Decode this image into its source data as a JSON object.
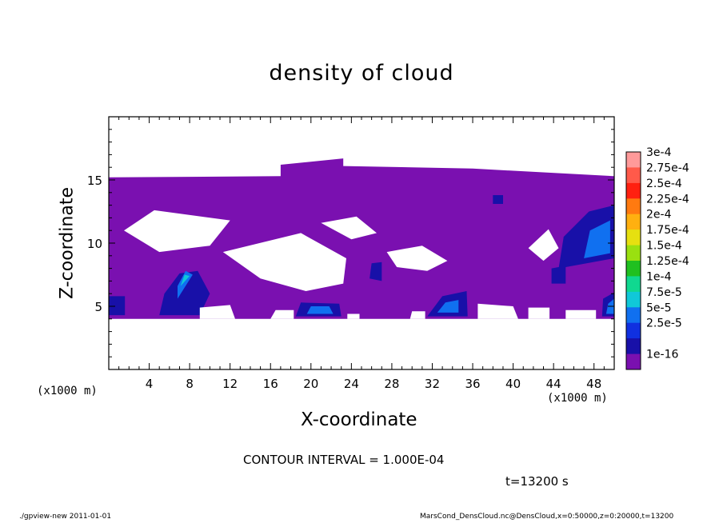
{
  "chart_data": {
    "type": "heatmap",
    "title": "density of cloud",
    "xlabel": "X-coordinate",
    "ylabel": "Z-coordinate",
    "x_unit_label_left": "(x1000 m)",
    "x_unit_label_right": "(x1000 m)",
    "xlim": [
      0,
      50
    ],
    "ylim": [
      0,
      20
    ],
    "x_ticks": [
      "4",
      "8",
      "12",
      "16",
      "20",
      "24",
      "28",
      "32",
      "36",
      "40",
      "44",
      "48"
    ],
    "x_tick_values": [
      4,
      8,
      12,
      16,
      20,
      24,
      28,
      32,
      36,
      40,
      44,
      48
    ],
    "y_ticks": [
      "5",
      "10",
      "15"
    ],
    "y_tick_values": [
      5,
      10,
      15
    ],
    "colorbar": {
      "labels": [
        "3e-4",
        "2.75e-4",
        "2.5e-4",
        "2.25e-4",
        "2e-4",
        "1.75e-4",
        "1.5e-4",
        "1.25e-4",
        "1e-4",
        "7.5e-5",
        "5e-5",
        "2.5e-5",
        "1e-16"
      ],
      "colors": [
        "#ff9a9a",
        "#ff5a4a",
        "#ff2010",
        "#ff7a10",
        "#ffb010",
        "#e6e010",
        "#9ae010",
        "#20c020",
        "#10d890",
        "#10c8d8",
        "#1070f0",
        "#1030e0",
        "#1810a8",
        "#7a10b0"
      ]
    },
    "regions": [
      {
        "level": "1e-16",
        "color": "#7a10b0",
        "polygon": [
          [
            0,
            15.2
          ],
          [
            17,
            15.3
          ],
          [
            17,
            16.2
          ],
          [
            23.2,
            16.7
          ],
          [
            23.2,
            16.1
          ],
          [
            36,
            15.9
          ],
          [
            50,
            15.3
          ],
          [
            50,
            4
          ],
          [
            0,
            4
          ]
        ]
      },
      {
        "level": "2.5e-5",
        "color": "#1810a8",
        "polygon": [
          [
            5,
            4.3
          ],
          [
            9,
            4.3
          ],
          [
            10,
            6
          ],
          [
            8.8,
            7.8
          ],
          [
            7,
            7.6
          ],
          [
            5.5,
            6
          ]
        ]
      },
      {
        "level": "5e-5",
        "color": "#1070f0",
        "polygon": [
          [
            6.8,
            5.6
          ],
          [
            8.3,
            7.5
          ],
          [
            7.6,
            7.8
          ],
          [
            6.8,
            6.6
          ]
        ]
      },
      {
        "level": "7.5e-5",
        "color": "#10c8d8",
        "polygon": [
          [
            7.1,
            6.6
          ],
          [
            8.0,
            7.4
          ],
          [
            7.5,
            7.5
          ]
        ]
      },
      {
        "level": "2.5e-5",
        "color": "#1810a8",
        "polygon": [
          [
            18.5,
            4.2
          ],
          [
            23,
            4.2
          ],
          [
            22.8,
            5.2
          ],
          [
            19,
            5.3
          ]
        ]
      },
      {
        "level": "5e-5",
        "color": "#1070f0",
        "polygon": [
          [
            19.6,
            4.4
          ],
          [
            22.2,
            4.4
          ],
          [
            21.8,
            5.0
          ],
          [
            20.0,
            5.0
          ]
        ]
      },
      {
        "level": "2.5e-5",
        "color": "#1810a8",
        "polygon": [
          [
            31.5,
            4.2
          ],
          [
            35.5,
            4.2
          ],
          [
            35.4,
            6.2
          ],
          [
            33,
            5.8
          ]
        ]
      },
      {
        "level": "5e-5",
        "color": "#1070f0",
        "polygon": [
          [
            32.5,
            4.5
          ],
          [
            34.6,
            4.5
          ],
          [
            34.6,
            5.5
          ],
          [
            33.3,
            5.3
          ]
        ]
      },
      {
        "level": "2.5e-5",
        "color": "#1810a8",
        "polygon": [
          [
            44.5,
            8
          ],
          [
            50,
            8.8
          ],
          [
            50,
            13
          ],
          [
            47.5,
            12.5
          ],
          [
            45,
            10.5
          ]
        ]
      },
      {
        "level": "5e-5",
        "color": "#1070f0",
        "polygon": [
          [
            47,
            8.8
          ],
          [
            49.6,
            9.2
          ],
          [
            49.6,
            11.8
          ],
          [
            47.6,
            11
          ]
        ]
      },
      {
        "level": "2.5e-5",
        "color": "#1810a8",
        "polygon": [
          [
            48.8,
            4.2
          ],
          [
            50,
            4.2
          ],
          [
            50,
            6.1
          ],
          [
            48.9,
            5.6
          ]
        ]
      },
      {
        "level": "5e-5",
        "color": "#1070f0",
        "polygon": [
          [
            49.2,
            4.4
          ],
          [
            50,
            4.4
          ],
          [
            50,
            5.6
          ],
          [
            49.4,
            5.2
          ]
        ]
      },
      {
        "level": "2.5e-5",
        "color": "#1810a8",
        "polygon": [
          [
            0,
            4.3
          ],
          [
            1.6,
            4.3
          ],
          [
            1.6,
            5.8
          ],
          [
            0,
            5.8
          ]
        ]
      },
      {
        "level": "2.5e-5",
        "color": "#1810a8",
        "polygon": [
          [
            25.8,
            7.2
          ],
          [
            27,
            7
          ],
          [
            27,
            8.5
          ],
          [
            26,
            8.4
          ]
        ]
      },
      {
        "level": "2.5e-5",
        "color": "#1810a8",
        "polygon": [
          [
            43.8,
            6.8
          ],
          [
            45.2,
            6.8
          ],
          [
            45.2,
            8.2
          ],
          [
            43.8,
            8
          ]
        ]
      },
      {
        "level": "2.5e-5",
        "color": "#1810a8",
        "polygon": [
          [
            38,
            13.1
          ],
          [
            39,
            13.1
          ],
          [
            39,
            13.8
          ],
          [
            38,
            13.8
          ]
        ]
      }
    ],
    "gaps": [
      [
        [
          1.5,
          11
        ],
        [
          4.5,
          12.6
        ],
        [
          12,
          11.8
        ],
        [
          10,
          9.8
        ],
        [
          5,
          9.3
        ]
      ],
      [
        [
          11.3,
          9.3
        ],
        [
          19,
          10.8
        ],
        [
          23.5,
          8.8
        ],
        [
          23.2,
          6.8
        ],
        [
          19.5,
          6.2
        ],
        [
          15,
          7.2
        ]
      ],
      [
        [
          21,
          11.6
        ],
        [
          24.5,
          12.1
        ],
        [
          26.5,
          10.8
        ],
        [
          24,
          10.3
        ]
      ],
      [
        [
          27.5,
          9.3
        ],
        [
          31,
          9.8
        ],
        [
          33.5,
          8.6
        ],
        [
          31.5,
          7.8
        ],
        [
          28.5,
          8.1
        ]
      ],
      [
        [
          41.5,
          9.6
        ],
        [
          43.5,
          11.1
        ],
        [
          44.5,
          9.6
        ],
        [
          43,
          8.6
        ]
      ],
      [
        [
          9,
          4
        ],
        [
          9,
          4.9
        ],
        [
          12,
          5.1
        ],
        [
          12.5,
          4
        ]
      ],
      [
        [
          16,
          4
        ],
        [
          16.5,
          4.7
        ],
        [
          18.3,
          4.7
        ],
        [
          18.3,
          4
        ]
      ],
      [
        [
          23.6,
          4
        ],
        [
          23.6,
          4.4
        ],
        [
          24.8,
          4.4
        ],
        [
          24.8,
          4
        ]
      ],
      [
        [
          29.8,
          4
        ],
        [
          30,
          4.6
        ],
        [
          31.3,
          4.6
        ],
        [
          31.3,
          4
        ]
      ],
      [
        [
          36.5,
          4
        ],
        [
          36.5,
          5.2
        ],
        [
          40,
          5
        ],
        [
          40.5,
          4
        ]
      ],
      [
        [
          41.5,
          4
        ],
        [
          41.5,
          4.9
        ],
        [
          43.6,
          4.9
        ],
        [
          43.6,
          4
        ]
      ],
      [
        [
          45.2,
          4
        ],
        [
          45.2,
          4.7
        ],
        [
          48.2,
          4.7
        ],
        [
          48.2,
          4
        ]
      ]
    ]
  },
  "contour_interval": "CONTOUR INTERVAL = 1.000E-04",
  "time_label": "t=13200 s",
  "footer": {
    "left": "./gpview-new   2011-01-01",
    "right": "MarsCond_DensCloud.nc@DensCloud,x=0:50000,z=0:20000,t=13200"
  }
}
